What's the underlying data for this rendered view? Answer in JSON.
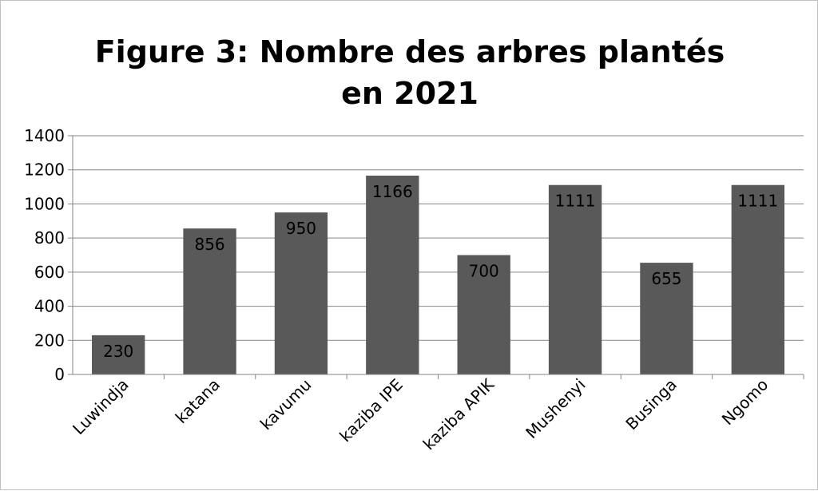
{
  "colors": {
    "bar": "#595959",
    "grid": "#868686",
    "axis": "#868686",
    "text": "#000000",
    "background": "#ffffff"
  },
  "chart_data": {
    "type": "bar",
    "title_lines": [
      "Figure 3: Nombre des arbres plantés",
      "en 2021"
    ],
    "categories": [
      "Luwindja",
      "katana",
      "kavumu",
      "kaziba IPE",
      "kaziba APIK",
      "Mushenyi",
      "Businga",
      "Ngomo"
    ],
    "values": [
      230,
      856,
      950,
      1166,
      700,
      1111,
      655,
      1111
    ],
    "data_labels": [
      "230",
      "856",
      "950",
      "1166",
      "700",
      "1111",
      "655",
      "1111"
    ],
    "y_ticks": [
      "0",
      "200",
      "400",
      "600",
      "800",
      "1000",
      "1200",
      "1400"
    ],
    "ylim": [
      0,
      1400
    ],
    "xlabel": "",
    "ylabel": "",
    "grid": true,
    "legend": "none"
  }
}
